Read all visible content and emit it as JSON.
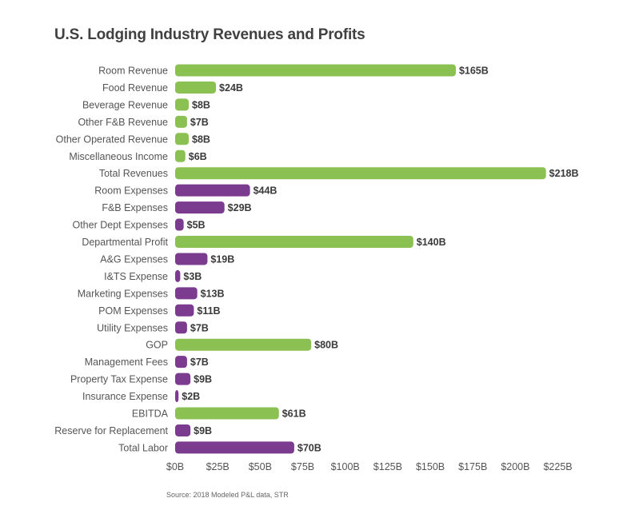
{
  "chart_data": {
    "type": "bar",
    "orientation": "horizontal",
    "title": "U.S. Lodging Industry Revenues and Profits",
    "source": "Source: 2018 Modeled P&L data, STR",
    "value_prefix": "$",
    "value_suffix": "B",
    "xlim": [
      0,
      225
    ],
    "x_ticks": [
      "$0B",
      "$25B",
      "$50B",
      "$75B",
      "$100B",
      "$125B",
      "$150B",
      "$175B",
      "$200B",
      "$225B"
    ],
    "x_tick_values": [
      0,
      25,
      50,
      75,
      100,
      125,
      150,
      175,
      200,
      225
    ],
    "grid": false,
    "colors": {
      "revenue_profit": "#8bc152",
      "expense": "#7b3b8f"
    },
    "categories": [
      "Room Revenue",
      "Food Revenue",
      "Beverage Revenue",
      "Other F&B Revenue",
      "Other Operated Revenue",
      "Miscellaneous Income",
      "Total Revenues",
      "Room Expenses",
      "F&B Expenses",
      "Other Dept Expenses",
      "Departmental Profit",
      "A&G Expenses",
      "I&TS Expense",
      "Marketing Expenses",
      "POM Expenses",
      "Utility Expenses",
      "GOP",
      "Management Fees",
      "Property Tax Expense",
      "Insurance Expense",
      "EBITDA",
      "Reserve for Replacement",
      "Total Labor"
    ],
    "values": [
      165,
      24,
      8,
      7,
      8,
      6,
      218,
      44,
      29,
      5,
      140,
      19,
      3,
      13,
      11,
      7,
      80,
      7,
      9,
      2,
      61,
      9,
      70
    ],
    "value_labels": [
      "$165B",
      "$24B",
      "$8B",
      "$7B",
      "$8B",
      "$6B",
      "$218B",
      "$44B",
      "$29B",
      "$5B",
      "$140B",
      "$19B",
      "$3B",
      "$13B",
      "$11B",
      "$7B",
      "$80B",
      "$7B",
      "$9B",
      "$2B",
      "$61B",
      "$9B",
      "$70B"
    ],
    "kinds": [
      "revenue_profit",
      "revenue_profit",
      "revenue_profit",
      "revenue_profit",
      "revenue_profit",
      "revenue_profit",
      "revenue_profit",
      "expense",
      "expense",
      "expense",
      "revenue_profit",
      "expense",
      "expense",
      "expense",
      "expense",
      "expense",
      "revenue_profit",
      "expense",
      "expense",
      "expense",
      "revenue_profit",
      "expense",
      "expense"
    ]
  }
}
